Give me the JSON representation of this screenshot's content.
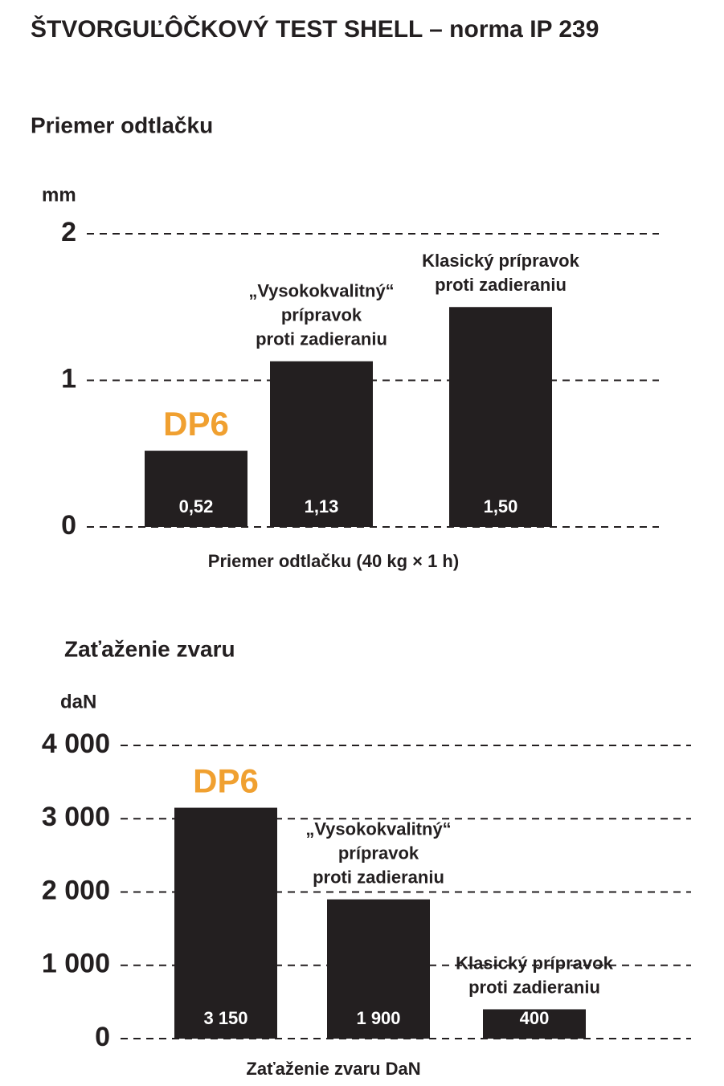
{
  "title": "ŠTVORGUĽÔČKOVÝ TEST SHELL – norma IP 239",
  "chart_data": [
    {
      "type": "bar",
      "title": "Priemer odtlačku",
      "y_unit": "mm",
      "x_label": "Priemer odtlačku (40 kg × 1 h)",
      "categories": [
        [
          "DP6"
        ],
        [
          "„Vysokokvalitný“",
          "prípravok",
          "proti zadieraniu"
        ],
        [
          "Klasický prípravok",
          "proti zadieraniu"
        ]
      ],
      "values": [
        0.52,
        1.13,
        1.5
      ],
      "value_labels": [
        "0,52",
        "1,13",
        "1,50"
      ],
      "color": "#231f20",
      "highlight_color": "#f0a030",
      "ylim": [
        0,
        2
      ],
      "yticks": [
        0,
        1,
        2
      ],
      "grid": true
    },
    {
      "type": "bar",
      "title": "Zaťaženie zvaru",
      "y_unit": "daN",
      "x_label": "Zaťaženie zvaru DaN",
      "categories": [
        [
          "DP6"
        ],
        [
          "„Vysokokvalitný“",
          "prípravok",
          "proti zadieraniu"
        ],
        [
          "Klasický prípravok",
          "proti zadieraniu"
        ]
      ],
      "values": [
        3150,
        1900,
        400
      ],
      "value_labels": [
        "3 150",
        "1 900",
        "400"
      ],
      "color": "#231f20",
      "highlight_color": "#f0a030",
      "ylim": [
        0,
        4000
      ],
      "yticks": [
        0,
        {
          "value": 1000,
          "label": "1 000"
        },
        {
          "value": 2000,
          "label": "2 000"
        },
        {
          "value": 3000,
          "label": "3 000"
        },
        {
          "value": 4000,
          "label": "4 000"
        }
      ],
      "grid": true
    }
  ]
}
